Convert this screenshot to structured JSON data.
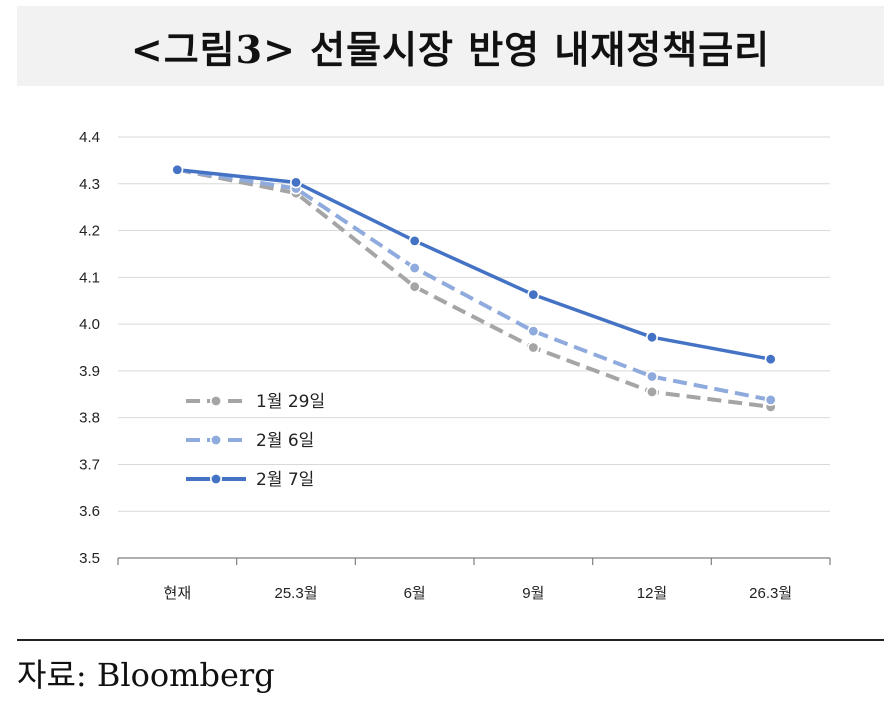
{
  "title": "<그림3> 선물시장 반영 내재정책금리",
  "source": "자료: Bloomberg",
  "chart_data": {
    "type": "line",
    "categories": [
      "현재",
      "25.3월",
      "6월",
      "9월",
      "12월",
      "26.3월"
    ],
    "ylim": [
      3.5,
      4.4
    ],
    "yticks": [
      "3.5",
      "3.6",
      "3.7",
      "3.8",
      "3.9",
      "4.0",
      "4.1",
      "4.2",
      "4.3",
      "4.4"
    ],
    "grid": true,
    "legend_position": "left",
    "series": [
      {
        "name": "1월 29일",
        "values": [
          4.33,
          4.28,
          4.08,
          3.95,
          3.855,
          3.823
        ],
        "color": "#a5a5a5",
        "dash": "dash"
      },
      {
        "name": "2월 6일",
        "values": [
          4.33,
          4.29,
          4.12,
          3.985,
          3.888,
          3.838
        ],
        "color": "#8faadc",
        "dash": "dash"
      },
      {
        "name": "2월 7일",
        "values": [
          4.33,
          4.303,
          4.178,
          4.063,
          3.972,
          3.925
        ],
        "color": "#4472c4",
        "dash": "solid"
      }
    ]
  }
}
